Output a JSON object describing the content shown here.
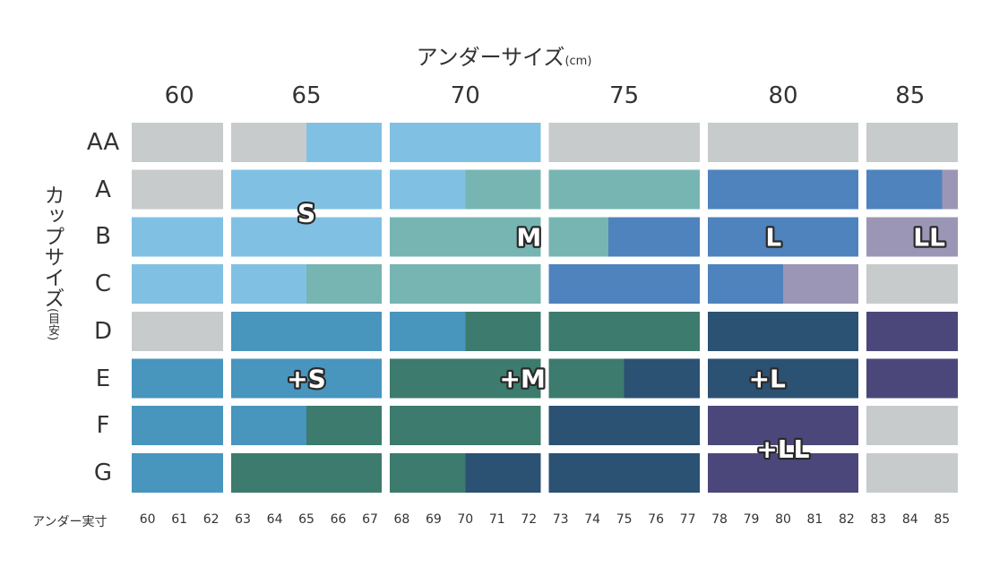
{
  "title": "アンダーサイズ",
  "title_unit": "(cm)",
  "y_title": "カップサイズ",
  "y_title_note": "(目安)",
  "footer_label": "アンダー実寸",
  "colors": {
    "gray": "#c8cbcc",
    "S": "#80c1e3",
    "M": "#77b5b2",
    "L": "#4e83bd",
    "LL": "#9c96b6",
    "plusS": "#4895be",
    "plusM": "#3c7b6d",
    "plusL": "#2b5173",
    "plusLL": "#4c477b"
  },
  "chart_data": {
    "type": "heatmap",
    "x_label": "アンダーサイズ(cm)",
    "y_label": "カップサイズ(目安)",
    "x_groups": [
      "60",
      "65",
      "70",
      "75",
      "80",
      "85"
    ],
    "x_ticks": [
      60,
      61,
      62,
      63,
      64,
      65,
      66,
      67,
      68,
      69,
      70,
      71,
      72,
      73,
      74,
      75,
      76,
      77,
      78,
      79,
      80,
      81,
      82,
      83,
      84,
      85
    ],
    "rows": [
      "AA",
      "A",
      "B",
      "C",
      "D",
      "E",
      "F",
      "G"
    ],
    "segments": {
      "AA": [
        [
          59.5,
          62.5,
          "gray"
        ],
        [
          62.5,
          65,
          "gray"
        ],
        [
          65,
          67.5,
          "S"
        ],
        [
          67.5,
          72.5,
          "S"
        ],
        [
          72.5,
          77.5,
          "gray"
        ],
        [
          77.5,
          82.5,
          "gray"
        ],
        [
          82.5,
          85.5,
          "gray"
        ]
      ],
      "A": [
        [
          59.5,
          62.5,
          "gray"
        ],
        [
          62.5,
          67.5,
          "S"
        ],
        [
          67.5,
          70,
          "S"
        ],
        [
          70,
          72.5,
          "M"
        ],
        [
          72.5,
          77.5,
          "M"
        ],
        [
          77.5,
          82.5,
          "L"
        ],
        [
          82.5,
          85,
          "L"
        ],
        [
          85,
          85.5,
          "LL"
        ]
      ],
      "B": [
        [
          59.5,
          62.5,
          "S"
        ],
        [
          62.5,
          67.5,
          "S"
        ],
        [
          67.5,
          72.5,
          "M"
        ],
        [
          72.5,
          74.5,
          "M"
        ],
        [
          74.5,
          77.5,
          "L"
        ],
        [
          77.5,
          82.5,
          "L"
        ],
        [
          82.5,
          85.5,
          "LL"
        ]
      ],
      "C": [
        [
          59.5,
          62.5,
          "S"
        ],
        [
          62.5,
          65,
          "S"
        ],
        [
          65,
          67.5,
          "M"
        ],
        [
          67.5,
          72.5,
          "M"
        ],
        [
          72.5,
          77.5,
          "L"
        ],
        [
          77.5,
          80,
          "L"
        ],
        [
          80,
          82.5,
          "LL"
        ],
        [
          82.5,
          85.5,
          "gray"
        ]
      ],
      "D": [
        [
          59.5,
          62.5,
          "gray"
        ],
        [
          62.5,
          67.5,
          "plusS"
        ],
        [
          67.5,
          70,
          "plusS"
        ],
        [
          70,
          72.5,
          "plusM"
        ],
        [
          72.5,
          77.5,
          "plusM"
        ],
        [
          77.5,
          82.5,
          "plusL"
        ],
        [
          82.5,
          85.5,
          "plusLL"
        ]
      ],
      "E": [
        [
          59.5,
          62.5,
          "plusS"
        ],
        [
          62.5,
          67.5,
          "plusS"
        ],
        [
          67.5,
          72.5,
          "plusM"
        ],
        [
          72.5,
          75,
          "plusM"
        ],
        [
          75,
          77.5,
          "plusL"
        ],
        [
          77.5,
          82.5,
          "plusL"
        ],
        [
          82.5,
          85.5,
          "plusLL"
        ]
      ],
      "F": [
        [
          59.5,
          62.5,
          "plusS"
        ],
        [
          62.5,
          65,
          "plusS"
        ],
        [
          65,
          67.5,
          "plusM"
        ],
        [
          67.5,
          72.5,
          "plusM"
        ],
        [
          72.5,
          77.5,
          "plusL"
        ],
        [
          77.5,
          82.5,
          "plusLL"
        ],
        [
          82.5,
          85.5,
          "gray"
        ]
      ],
      "G": [
        [
          59.5,
          62.5,
          "plusS"
        ],
        [
          62.5,
          67.5,
          "plusM"
        ],
        [
          67.5,
          70,
          "plusM"
        ],
        [
          70,
          72.5,
          "plusL"
        ],
        [
          72.5,
          77.5,
          "plusL"
        ],
        [
          77.5,
          82.5,
          "plusLL"
        ],
        [
          82.5,
          85.5,
          "gray"
        ]
      ]
    },
    "size_labels": [
      {
        "text": "S",
        "row": "A",
        "at": 65,
        "offset": "lower"
      },
      {
        "text": "M",
        "row": "B",
        "at": 72,
        "offset": "center"
      },
      {
        "text": "L",
        "row": "B",
        "at": 79.7,
        "offset": "center"
      },
      {
        "text": "LL",
        "row": "B",
        "at": 84.6,
        "offset": "center"
      },
      {
        "text": "+S",
        "row": "E",
        "at": 65,
        "offset": "center"
      },
      {
        "text": "+M",
        "row": "E",
        "at": 71.8,
        "offset": "center"
      },
      {
        "text": "+L",
        "row": "E",
        "at": 79.5,
        "offset": "center"
      },
      {
        "text": "+LL",
        "row": "F",
        "at": 80,
        "offset": "lower"
      }
    ]
  }
}
